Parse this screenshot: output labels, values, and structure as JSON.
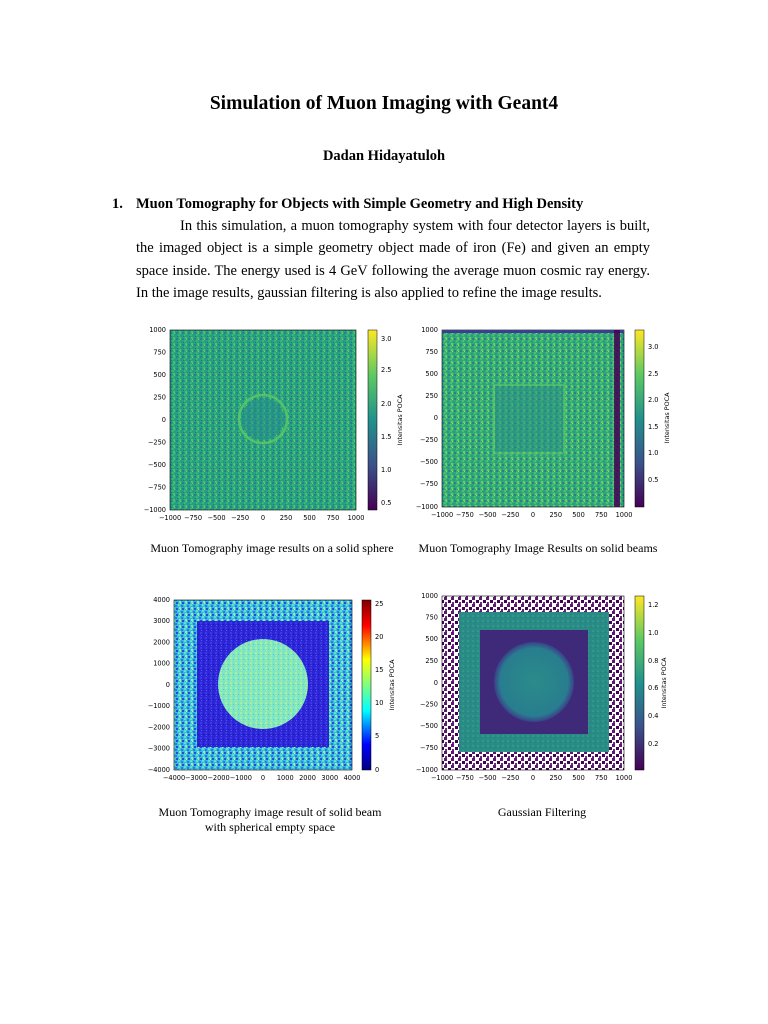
{
  "document": {
    "title": "Simulation of Muon Imaging with Geant4",
    "author": "Dadan Hidayatuloh",
    "section": {
      "number": "1.",
      "heading": "Muon Tomography for Objects with Simple Geometry and High Density",
      "paragraph": "In this simulation, a muon tomography system with four detector layers is built, the imaged object is a simple geometry object made of iron (Fe) and given an empty space inside. The energy used is 4 GeV following the average muon cosmic ray energy. In the image results, gaussian filtering is also applied to refine the image results."
    }
  },
  "figures": [
    {
      "caption": "Muon Tomography image results on a solid sphere",
      "colorbar_label": "Intensitas POCA",
      "x_ticks": [
        "−1000",
        "−750",
        "−500",
        "−250",
        "0",
        "250",
        "500",
        "750",
        "1000"
      ],
      "y_ticks": [
        "1000",
        "750",
        "500",
        "250",
        "0",
        "−250",
        "−500",
        "−750",
        "−1000"
      ],
      "colorbar_ticks": [
        "3.0",
        "2.5",
        "2.0",
        "1.5",
        "1.0",
        "0.5"
      ],
      "colormap": "viridis"
    },
    {
      "caption": "Muon Tomography Image Results on solid beams",
      "colorbar_label": "Intensitas POCA",
      "x_ticks": [
        "−1000",
        "−750",
        "−500",
        "−250",
        "0",
        "250",
        "500",
        "750",
        "1000"
      ],
      "y_ticks": [
        "1000",
        "750",
        "500",
        "250",
        "0",
        "−250",
        "−500",
        "−750",
        "−1000"
      ],
      "colorbar_ticks": [
        "3.0",
        "2.5",
        "2.0",
        "1.5",
        "1.0",
        "0.5"
      ],
      "colormap": "viridis"
    },
    {
      "caption_line1": "Muon Tomography image result of solid beam",
      "caption_line2": "with spherical empty space",
      "colorbar_label": "Intensitas POCA",
      "x_ticks": [
        "−4000",
        "−3000",
        "−2000",
        "−1000",
        "0",
        "1000",
        "2000",
        "3000",
        "4000"
      ],
      "y_ticks": [
        "4000",
        "3000",
        "2000",
        "1000",
        "0",
        "−1000",
        "−2000",
        "−3000",
        "−4000"
      ],
      "colorbar_ticks": [
        "25",
        "20",
        "15",
        "10",
        "5",
        "0"
      ],
      "colormap": "jet"
    },
    {
      "caption": "Gaussian Filtering",
      "colorbar_label": "Intensitas POCA",
      "x_ticks": [
        "−1000",
        "−750",
        "−500",
        "−250",
        "0",
        "250",
        "500",
        "750",
        "1000"
      ],
      "y_ticks": [
        "1000",
        "750",
        "500",
        "250",
        "0",
        "−250",
        "−500",
        "−750",
        "−1000"
      ],
      "colorbar_ticks": [
        "1.2",
        "1.0",
        "0.8",
        "0.6",
        "0.4",
        "0.2"
      ],
      "colormap": "viridis"
    }
  ]
}
